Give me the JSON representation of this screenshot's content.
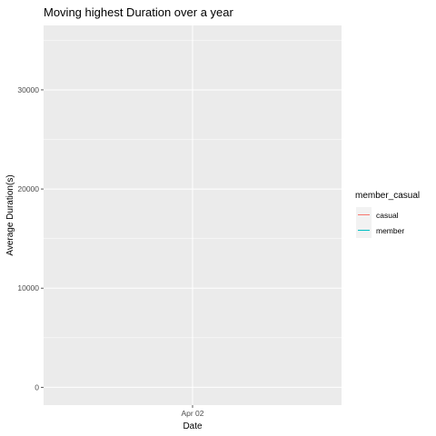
{
  "chart_data": {
    "type": "line",
    "title": "Moving highest Duration over a year",
    "xlabel": "Date",
    "ylabel": "Average Duration(s)",
    "x_ticks": [
      "Apr 02"
    ],
    "y_ticks": [
      0,
      10000,
      20000,
      30000
    ],
    "ylim": [
      -1800,
      36500
    ],
    "grid": true,
    "legend": {
      "title": "member_casual",
      "placement": "right",
      "entries": [
        {
          "label": "casual",
          "color": "#F8766D"
        },
        {
          "label": "member",
          "color": "#00BFC4"
        }
      ]
    },
    "series": [
      {
        "name": "casual",
        "color": "#F8766D",
        "values": []
      },
      {
        "name": "member",
        "color": "#00BFC4",
        "values": []
      }
    ]
  },
  "colors": {
    "panel_background": "#EBEBEB",
    "grid_major": "#FFFFFF",
    "tick_color": "#333333"
  }
}
